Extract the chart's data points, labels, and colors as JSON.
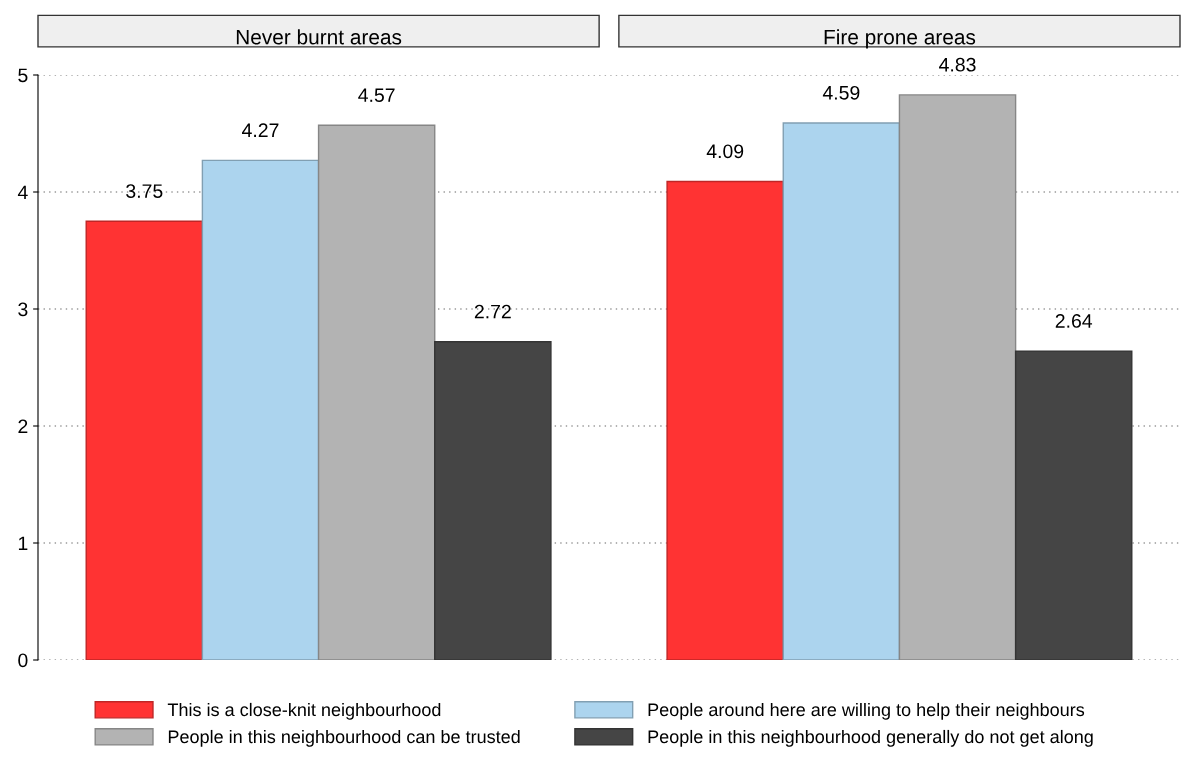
{
  "chart_data": {
    "type": "bar",
    "categories": [
      "Never burnt areas",
      "Fire prone areas"
    ],
    "ylim": [
      0,
      5
    ],
    "yticks": [
      0,
      1,
      2,
      3,
      4,
      5
    ],
    "grid": "y",
    "data_labels": true,
    "legend": "bottom",
    "series": [
      {
        "name": "This is a close-knit neighbourhood",
        "color": "#ff3333",
        "values": [
          3.75,
          4.09
        ]
      },
      {
        "name": "People around here are willing to help their neighbours",
        "color": "#acd4ee",
        "values": [
          4.27,
          4.59
        ]
      },
      {
        "name": "People in this neighbourhood can be trusted",
        "color": "#b3b3b3",
        "values": [
          4.57,
          4.83
        ]
      },
      {
        "name": "People in this neighbourhood generally do not get along",
        "color": "#454545",
        "values": [
          2.72,
          2.64
        ]
      }
    ]
  }
}
